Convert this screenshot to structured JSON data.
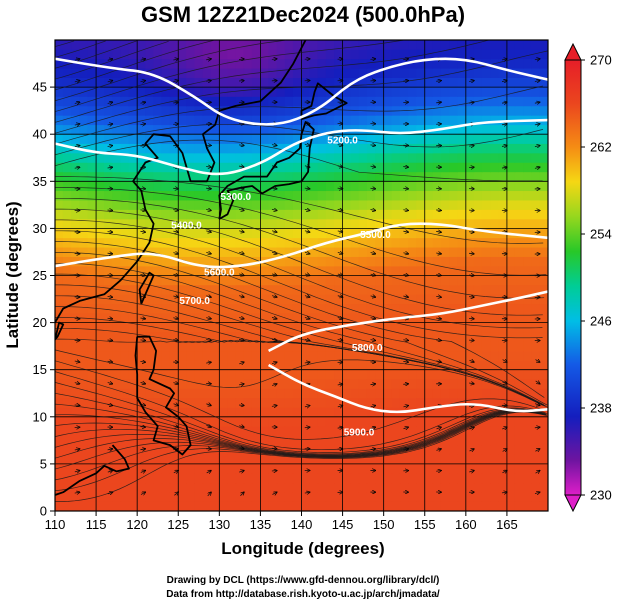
{
  "chart_data": {
    "type": "heatmap",
    "title": "GSM 12Z21Dec2024 (500.0hPa)",
    "xlabel": "Longitude (degrees)",
    "ylabel": "Latitude  (degrees)",
    "xlim": [
      110,
      170
    ],
    "ylim": [
      0,
      50
    ],
    "xticks": [
      110,
      115,
      120,
      125,
      130,
      135,
      140,
      145,
      150,
      155,
      160,
      165
    ],
    "yticks": [
      0,
      5,
      10,
      15,
      20,
      25,
      30,
      35,
      40,
      45
    ],
    "grid": true,
    "colorbar": {
      "range": [
        230,
        270
      ],
      "ticks": [
        230,
        238,
        246,
        254,
        262,
        270
      ],
      "placement": "right"
    },
    "temperature_profile_by_latitude": {
      "lat": [
        0,
        10,
        15,
        20,
        25,
        28,
        31,
        34,
        37,
        40,
        43,
        46,
        50
      ],
      "temp": [
        266,
        266,
        265,
        265,
        264,
        261,
        258,
        254,
        250,
        245,
        241,
        238,
        236
      ]
    },
    "cold_core": {
      "lon": 132,
      "lat": 48,
      "temp": 234
    },
    "contours": [
      {
        "label": "5200.0",
        "points": [
          [
            110,
            48
          ],
          [
            117,
            47
          ],
          [
            122,
            46.5
          ],
          [
            127,
            44
          ],
          [
            131,
            41.5
          ],
          [
            137,
            40.8
          ],
          [
            142,
            42.5
          ],
          [
            146,
            45.5
          ],
          [
            150,
            47
          ],
          [
            155,
            48
          ],
          [
            160,
            48
          ],
          [
            165,
            46.8
          ],
          [
            170,
            45.8
          ]
        ]
      },
      {
        "label": "5300.0",
        "points": [
          [
            110,
            39
          ],
          [
            115,
            38
          ],
          [
            120,
            37.8
          ],
          [
            125,
            36.5
          ],
          [
            130,
            35.5
          ],
          [
            135,
            36.8
          ],
          [
            139,
            39
          ],
          [
            143,
            40.2
          ],
          [
            147,
            40.5
          ],
          [
            152,
            40
          ],
          [
            157,
            40.5
          ],
          [
            162,
            41.3
          ],
          [
            170,
            41.5
          ]
        ]
      },
      {
        "label": "5300.0",
        "points": [
          [
            110,
            26
          ],
          [
            117,
            27
          ],
          [
            122,
            27.5
          ],
          [
            128,
            25.8
          ],
          [
            133,
            26
          ],
          [
            138,
            27
          ],
          [
            143,
            28.5
          ],
          [
            148,
            29.5
          ],
          [
            152,
            30.5
          ],
          [
            157,
            30.5
          ],
          [
            162,
            29.7
          ],
          [
            170,
            29
          ]
        ]
      },
      {
        "label": "5900.0",
        "points": [
          [
            136,
            17
          ],
          [
            140,
            18.8
          ],
          [
            146,
            19.8
          ],
          [
            152,
            20.5
          ],
          [
            157,
            20.9
          ],
          [
            162,
            21.8
          ],
          [
            167,
            22.7
          ],
          [
            170,
            23.3
          ]
        ]
      },
      {
        "label": "5900.0",
        "points": [
          [
            136,
            15.5
          ],
          [
            140,
            13.5
          ],
          [
            144,
            12.2
          ],
          [
            148,
            10.8
          ],
          [
            152,
            10.4
          ],
          [
            156,
            11
          ],
          [
            161,
            11.5
          ],
          [
            166,
            10.5
          ],
          [
            170,
            10.8
          ]
        ]
      }
    ],
    "contour_labels": [
      {
        "text": "5200.0",
        "lon": 145,
        "lat": 39
      },
      {
        "text": "5300.0",
        "lon": 132,
        "lat": 33
      },
      {
        "text": "5400.0",
        "lon": 126,
        "lat": 30
      },
      {
        "text": "5500.0",
        "lon": 149,
        "lat": 29
      },
      {
        "text": "5600.0",
        "lon": 130,
        "lat": 25
      },
      {
        "text": "5700.0",
        "lon": 127,
        "lat": 22
      },
      {
        "text": "5800.0",
        "lon": 148,
        "lat": 17
      },
      {
        "text": "5900.0",
        "lon": 147,
        "lat": 8
      }
    ]
  },
  "footer": {
    "line1": "Drawing by DCL (https://www.gfd-dennou.org/library/dcl/)",
    "line2": "Data from http://database.rish.kyoto-u.ac.jp/arch/jmadata/"
  }
}
